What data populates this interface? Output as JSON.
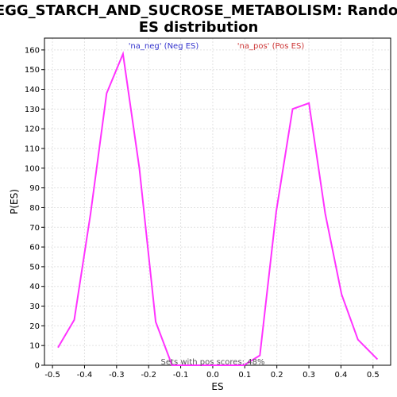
{
  "chart_data": {
    "type": "line",
    "title_line1": "KEGG_STARCH_AND_SUCROSE_METABOLISM: Random",
    "title_line2": "ES distribution",
    "xlabel": "ES",
    "ylabel": "P(ES)",
    "xlim": [
      -0.525,
      0.555
    ],
    "ylim": [
      0,
      166
    ],
    "x_ticks": [
      -0.5,
      -0.4,
      -0.3,
      -0.2,
      -0.1,
      0.0,
      0.1,
      0.2,
      0.3,
      0.4,
      0.5
    ],
    "x_tick_labels": [
      "-0.5",
      "-0.4",
      "-0.3",
      "-0.2",
      "-0.1",
      "0.0",
      "0.1",
      "0.2",
      "0.3",
      "0.4",
      "0.5"
    ],
    "y_ticks": [
      0,
      10,
      20,
      30,
      40,
      50,
      60,
      70,
      80,
      90,
      100,
      110,
      120,
      130,
      140,
      150,
      160
    ],
    "y_tick_labels": [
      "0",
      "10",
      "20",
      "30",
      "40",
      "50",
      "60",
      "70",
      "80",
      "90",
      "100",
      "110",
      "120",
      "130",
      "140",
      "150",
      "160"
    ],
    "grid": true,
    "line_color": "#ff33ff",
    "legend": [
      {
        "label": "'na_neg' (Neg ES)",
        "color": "#3333cc"
      },
      {
        "label": "'na_pos' (Pos ES)",
        "color": "#cc3333"
      }
    ],
    "annotation": "Sets with pos scores: 48%",
    "series": [
      {
        "x": [
          -0.483,
          -0.432,
          -0.381,
          -0.331,
          -0.28,
          -0.229,
          -0.178,
          -0.127,
          -0.076,
          -0.025,
          0.026,
          0.077,
          0.097,
          0.147,
          0.198,
          0.249,
          0.3,
          0.351,
          0.402,
          0.453,
          0.514
        ],
        "y": [
          9,
          23,
          77,
          138,
          158,
          100,
          22,
          0,
          0,
          0,
          0,
          0,
          0,
          5,
          78,
          130,
          133,
          77,
          36,
          13,
          3
        ]
      }
    ]
  }
}
